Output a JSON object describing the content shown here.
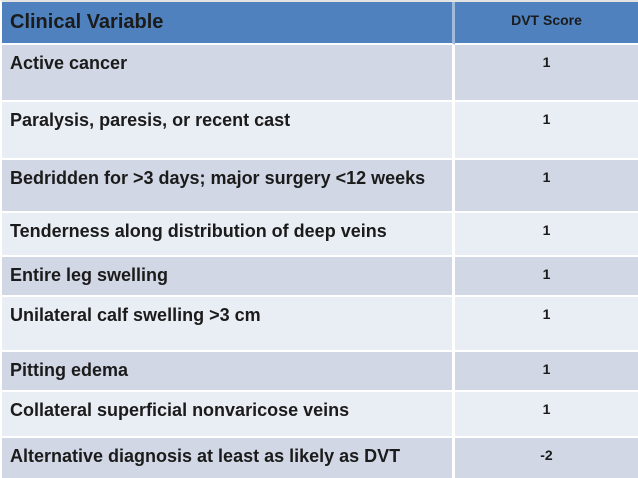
{
  "title": "DVT clinical prediction table",
  "colors": {
    "header_bg": "#4E81BD",
    "band_dark": "#D1D7E5",
    "band_light": "#E9EDF4",
    "text": "#1B1B1B",
    "divider": "#FFFFFF"
  },
  "table": {
    "header": {
      "variable": "Clinical Variable",
      "score": "DVT Score"
    },
    "rows": [
      {
        "variable": "Active cancer",
        "score": "1"
      },
      {
        "variable": "Paralysis, paresis, or recent cast",
        "score": "1"
      },
      {
        "variable": "Bedridden for >3 days; major surgery <12 weeks",
        "score": "1"
      },
      {
        "variable": "Tenderness along distribution of deep veins",
        "score": "1"
      },
      {
        "variable": "Entire leg swelling",
        "score": "1"
      },
      {
        "variable": "Unilateral calf swelling >3 cm",
        "score": "1"
      },
      {
        "variable": "Pitting edema",
        "score": "1"
      },
      {
        "variable": "Collateral superficial nonvaricose veins",
        "score": "1"
      },
      {
        "variable": "Alternative diagnosis at least as likely as DVT",
        "score": "-2"
      }
    ]
  },
  "chart_data": {
    "type": "table",
    "title": "",
    "columns": [
      "Clinical Variable",
      "DVT Score"
    ],
    "rows": [
      [
        "Active cancer",
        1
      ],
      [
        "Paralysis, paresis, or recent cast",
        1
      ],
      [
        "Bedridden for >3 days; major surgery <12 weeks",
        1
      ],
      [
        "Tenderness along distribution of deep veins",
        1
      ],
      [
        "Entire leg swelling",
        1
      ],
      [
        "Unilateral calf swelling >3 cm",
        1
      ],
      [
        "Pitting edema",
        1
      ],
      [
        "Collateral superficial nonvaricose veins",
        1
      ],
      [
        "Alternative diagnosis at least as likely as DVT",
        -2
      ]
    ],
    "layout_hints": {
      "header_fill": "#4E81BD",
      "row_banding": [
        "#D1D7E5",
        "#E9EDF4"
      ],
      "first_column_align": "left",
      "score_column_align": "center"
    }
  }
}
